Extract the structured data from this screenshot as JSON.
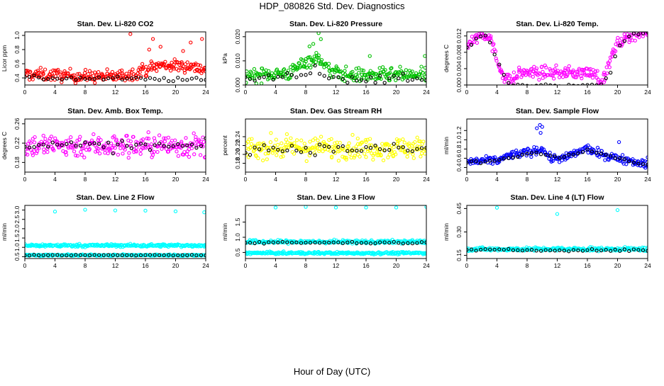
{
  "figure": {
    "title": "HDP_080826  Std. Dev. Diagnostics",
    "xlabel": "Hour of Day (UTC)"
  },
  "colors": {
    "red": "#ff0000",
    "green": "#00c000",
    "magenta": "#ff00ff",
    "yellow": "#ffff00",
    "blue": "#0000ff",
    "cyan": "#00ffff",
    "black": "#000000"
  },
  "chart_data": [
    {
      "id": "co2",
      "type": "scatter",
      "title": "Stan. Dev. Li-820 CO2",
      "ylabel": "Licor ppm",
      "xlim": [
        0,
        24
      ],
      "ylim": [
        0.3,
        1.05
      ],
      "xticks": [
        "0",
        "4",
        "8",
        "12",
        "16",
        "20",
        "24"
      ],
      "yticks": [
        "0.4",
        "0.6",
        "0.8",
        "1.0"
      ],
      "series": [
        {
          "name": "all",
          "color": "red",
          "dense": true,
          "profile": [
            [
              0,
              0.45
            ],
            [
              4,
              0.44
            ],
            [
              8,
              0.42
            ],
            [
              12,
              0.42
            ],
            [
              14,
              0.45
            ],
            [
              16,
              0.52
            ],
            [
              18,
              0.58
            ],
            [
              20,
              0.57
            ],
            [
              22,
              0.57
            ],
            [
              24,
              0.52
            ]
          ],
          "spread": 0.09,
          "outliers": [
            [
              14,
              1.02
            ],
            [
              17,
              0.95
            ],
            [
              18,
              0.84
            ],
            [
              22,
              0.9
            ],
            [
              23.5,
              0.95
            ],
            [
              21,
              0.78
            ],
            [
              16.5,
              0.8
            ]
          ]
        },
        {
          "name": "hourly",
          "color": "black",
          "profile": [
            [
              0,
              0.4
            ],
            [
              12,
              0.39
            ],
            [
              24,
              0.37
            ]
          ],
          "spread": 0.03
        }
      ]
    },
    {
      "id": "pressure",
      "type": "scatter",
      "title": "Stan. Dev. Li-820 Pressure",
      "ylabel": "kPa",
      "xlim": [
        0,
        24
      ],
      "ylim": [
        0,
        0.022
      ],
      "xticks": [
        "0",
        "4",
        "8",
        "12",
        "16",
        "20",
        "24"
      ],
      "yticks": [
        "0.000",
        "0.010",
        "0.020"
      ],
      "series": [
        {
          "name": "all",
          "color": "green",
          "dense": true,
          "profile": [
            [
              0,
              0.004
            ],
            [
              6,
              0.005
            ],
            [
              8,
              0.01
            ],
            [
              10,
              0.011
            ],
            [
              11,
              0.006
            ],
            [
              14,
              0.004
            ],
            [
              20,
              0.004
            ],
            [
              24,
              0.004
            ]
          ],
          "spread": 0.003,
          "outliers": [
            [
              9.7,
              0.0215
            ],
            [
              10,
              0.019
            ],
            [
              8.5,
              0.016
            ],
            [
              9,
              0.017
            ],
            [
              16.5,
              0.012
            ],
            [
              23.8,
              0.012
            ]
          ]
        },
        {
          "name": "hourly",
          "color": "black",
          "profile": [
            [
              0,
              0.002
            ],
            [
              8,
              0.004
            ],
            [
              9,
              0.007
            ],
            [
              12,
              0.003
            ],
            [
              24,
              0.002
            ]
          ],
          "spread": 0.002
        }
      ]
    },
    {
      "id": "temp",
      "type": "scatter",
      "title": "Stan. Dev. Li-820 Temp.",
      "ylabel": "degrees C",
      "xlim": [
        0,
        24
      ],
      "ylim": [
        0,
        0.013
      ],
      "xticks": [
        "0",
        "4",
        "8",
        "12",
        "16",
        "20",
        "24"
      ],
      "yticks": [
        "0.000",
        "0.004",
        "0.008",
        "0.012"
      ],
      "series": [
        {
          "name": "all",
          "color": "magenta",
          "dense": true,
          "profile": [
            [
              0,
              0.01
            ],
            [
              2,
              0.0125
            ],
            [
              3,
              0.012
            ],
            [
              4,
              0.006
            ],
            [
              5,
              0.002
            ],
            [
              6,
              0.001
            ],
            [
              7,
              0.003
            ],
            [
              8,
              0.003
            ],
            [
              12,
              0.003
            ],
            [
              17,
              0.003
            ],
            [
              18,
              0.0005
            ],
            [
              19,
              0.006
            ],
            [
              20,
              0.01
            ],
            [
              22,
              0.0125
            ],
            [
              24,
              0.013
            ]
          ],
          "spread": 0.0015
        },
        {
          "name": "hourly",
          "color": "black",
          "profile": [
            [
              0,
              0.009
            ],
            [
              2,
              0.0125
            ],
            [
              3,
              0.011
            ],
            [
              4,
              0.006
            ],
            [
              5,
              0.002
            ],
            [
              6,
              0
            ],
            [
              18,
              0
            ],
            [
              19,
              0.003
            ],
            [
              20,
              0.009
            ],
            [
              22,
              0.0125
            ],
            [
              24,
              0.013
            ]
          ],
          "spread": 0.0005
        }
      ]
    },
    {
      "id": "box",
      "type": "scatter",
      "title": "Stan. Dev. Amb. Box Temp.",
      "ylabel": "degrees C",
      "xlim": [
        0,
        24
      ],
      "ylim": [
        0.16,
        0.27
      ],
      "xticks": [
        "0",
        "4",
        "8",
        "12",
        "16",
        "20",
        "24"
      ],
      "yticks": [
        "0.18",
        "0.22",
        "0.26"
      ],
      "series": [
        {
          "name": "all",
          "color": "magenta",
          "dense": true,
          "profile": [
            [
              0,
              0.215
            ],
            [
              24,
              0.215
            ]
          ],
          "spread": 0.025
        },
        {
          "name": "hourly",
          "color": "black",
          "profile": [
            [
              0,
              0.215
            ],
            [
              24,
              0.213
            ]
          ],
          "spread": 0.012
        }
      ]
    },
    {
      "id": "rh",
      "type": "scatter",
      "title": "Stan. Dev. Gas Stream RH",
      "ylabel": "percent",
      "xlim": [
        0,
        24
      ],
      "ylim": [
        0.16,
        0.28
      ],
      "xticks": [
        "0",
        "4",
        "8",
        "12",
        "16",
        "20",
        "24"
      ],
      "yticks": [
        "0.18",
        "0.20",
        "0.22",
        "0.24"
      ],
      "series": [
        {
          "name": "all",
          "color": "yellow",
          "dense": true,
          "profile": [
            [
              0,
              0.215
            ],
            [
              24,
              0.215
            ]
          ],
          "spread": 0.025
        },
        {
          "name": "hourly",
          "color": "black",
          "profile": [
            [
              0,
              0.213
            ],
            [
              24,
              0.212
            ]
          ],
          "spread": 0.012
        }
      ]
    },
    {
      "id": "flow",
      "type": "scatter",
      "title": "Stan. Dev. Sample Flow",
      "ylabel": "ml/min",
      "xlim": [
        0,
        24
      ],
      "ylim": [
        0.3,
        1.45
      ],
      "xticks": [
        "0",
        "4",
        "8",
        "12",
        "16",
        "20",
        "24"
      ],
      "yticks": [
        "0.4",
        "0.6",
        "0.8",
        "1.0",
        "1.2"
      ],
      "series": [
        {
          "name": "all",
          "color": "blue",
          "dense": true,
          "profile": [
            [
              0,
              0.52
            ],
            [
              4,
              0.55
            ],
            [
              6,
              0.68
            ],
            [
              8,
              0.72
            ],
            [
              9.5,
              0.78
            ],
            [
              10,
              0.82
            ],
            [
              11,
              0.6
            ],
            [
              13,
              0.6
            ],
            [
              14,
              0.68
            ],
            [
              16,
              0.82
            ],
            [
              17,
              0.72
            ],
            [
              20,
              0.6
            ],
            [
              22,
              0.55
            ],
            [
              24,
              0.45
            ]
          ],
          "spread": 0.09,
          "outliers": [
            [
              9.3,
              1.25
            ],
            [
              9.7,
              1.32
            ],
            [
              10,
              1.28
            ],
            [
              9.8,
              1.15
            ],
            [
              20.2,
              0.95
            ],
            [
              24,
              0.62
            ]
          ]
        },
        {
          "name": "hourly",
          "color": "black",
          "profile": [
            [
              0,
              0.5
            ],
            [
              4,
              0.55
            ],
            [
              8,
              0.7
            ],
            [
              10,
              0.7
            ],
            [
              12,
              0.6
            ],
            [
              16,
              0.78
            ],
            [
              20,
              0.6
            ],
            [
              24,
              0.45
            ]
          ],
          "spread": 0.03
        }
      ]
    },
    {
      "id": "line2",
      "type": "scatter",
      "title": "Stan. Dev. Line 2 Flow",
      "ylabel": "ml/min",
      "xlim": [
        0,
        24
      ],
      "ylim": [
        0.4,
        3.25
      ],
      "xticks": [
        "0",
        "4",
        "8",
        "12",
        "16",
        "20",
        "24"
      ],
      "yticks": [
        "0.5",
        "1.0",
        "1.5",
        "2.0",
        "2.5",
        "3.0"
      ],
      "series": [
        {
          "name": "upper",
          "color": "cyan",
          "dense": true,
          "profile": [
            [
              0,
              1.1
            ],
            [
              24,
              1.1
            ]
          ],
          "spread": 0.08,
          "outliers": [
            [
              4,
              2.92
            ],
            [
              8,
              3.02
            ],
            [
              12,
              2.98
            ],
            [
              16,
              2.97
            ],
            [
              20,
              2.93
            ],
            [
              23.8,
              2.88
            ]
          ]
        },
        {
          "name": "lower",
          "color": "cyan",
          "dense": true,
          "profile": [
            [
              0,
              0.58
            ],
            [
              24,
              0.58
            ]
          ],
          "spread": 0.04
        },
        {
          "name": "hourly",
          "color": "black",
          "profile": [
            [
              0,
              0.58
            ],
            [
              24,
              0.58
            ]
          ],
          "spread": 0.02
        }
      ]
    },
    {
      "id": "line3",
      "type": "scatter",
      "title": "Stan. Dev. Line 3 Flow",
      "ylabel": "ml/min",
      "xlim": [
        0,
        24
      ],
      "ylim": [
        0.3,
        2.05
      ],
      "xticks": [
        "0",
        "4",
        "8",
        "12",
        "16",
        "20",
        "24"
      ],
      "yticks": [
        "0.5",
        "1.0",
        "1.5"
      ],
      "series": [
        {
          "name": "upper",
          "color": "cyan",
          "dense": true,
          "profile": [
            [
              0,
              0.85
            ],
            [
              24,
              0.85
            ]
          ],
          "spread": 0.06,
          "outliers": [
            [
              4,
              1.98
            ],
            [
              8,
              2.0
            ],
            [
              12,
              1.98
            ],
            [
              16,
              1.98
            ],
            [
              20,
              1.98
            ],
            [
              24,
              2.0
            ]
          ]
        },
        {
          "name": "lower",
          "color": "cyan",
          "dense": true,
          "profile": [
            [
              0,
              0.48
            ],
            [
              24,
              0.48
            ]
          ],
          "spread": 0.04
        },
        {
          "name": "hourly",
          "color": "black",
          "profile": [
            [
              0,
              0.83
            ],
            [
              24,
              0.82
            ]
          ],
          "spread": 0.03
        }
      ]
    },
    {
      "id": "line4",
      "type": "scatter",
      "title": "Stan. Dev. Line 4 (LT) Flow",
      "ylabel": "ml/min",
      "xlim": [
        0,
        24
      ],
      "ylim": [
        0.13,
        0.47
      ],
      "xticks": [
        "0",
        "4",
        "8",
        "12",
        "16",
        "20",
        "24"
      ],
      "yticks": [
        "0.15",
        "0.30",
        "0.45"
      ],
      "series": [
        {
          "name": "all",
          "color": "cyan",
          "dense": true,
          "profile": [
            [
              0,
              0.19
            ],
            [
              24,
              0.19
            ]
          ],
          "spread": 0.012,
          "outliers": [
            [
              4,
              0.455
            ],
            [
              12,
              0.415
            ],
            [
              20,
              0.44
            ]
          ]
        },
        {
          "name": "hourly",
          "color": "black",
          "profile": [
            [
              0,
              0.185
            ],
            [
              24,
              0.183
            ]
          ],
          "spread": 0.006
        }
      ]
    }
  ]
}
